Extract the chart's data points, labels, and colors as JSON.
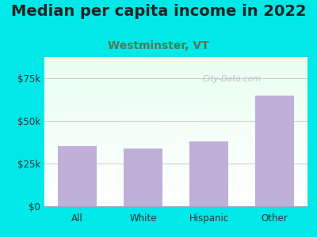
{
  "title": "Median per capita income in 2022",
  "subtitle": "Westminster, VT",
  "categories": [
    "All",
    "White",
    "Hispanic",
    "Other"
  ],
  "values": [
    35000,
    34000,
    38000,
    65000
  ],
  "bar_color": "#c0afd8",
  "title_color": "#222222",
  "subtitle_color": "#557755",
  "background_color": "#00e8e8",
  "yticks": [
    0,
    25000,
    50000,
    75000
  ],
  "ytick_labels": [
    "$0",
    "$25k",
    "$50k",
    "$75k"
  ],
  "ylim": [
    0,
    87500
  ],
  "watermark": "City-Data.com",
  "title_fontsize": 14,
  "subtitle_fontsize": 10,
  "tick_fontsize": 8.5
}
